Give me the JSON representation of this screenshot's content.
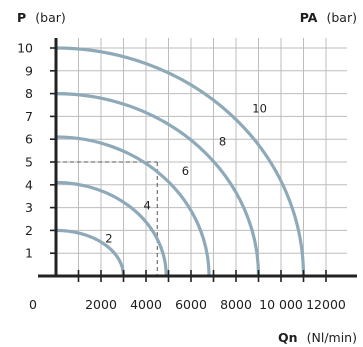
{
  "chart_data": {
    "type": "line",
    "y_axis": {
      "name": "P",
      "unit": "(bar)",
      "ticks": [
        "1",
        "2",
        "3",
        "4",
        "5",
        "6",
        "7",
        "8",
        "9",
        "10"
      ],
      "ylim": [
        0,
        10.5
      ]
    },
    "y2_axis": {
      "name": "PA",
      "unit": "(bar)"
    },
    "x_axis": {
      "name": "Qn",
      "unit": "(Nl/min)",
      "ticks": [
        "0",
        "2000",
        "4000",
        "6000",
        "8000",
        "10 000",
        "12000"
      ],
      "tick_values": [
        0,
        2000,
        4000,
        6000,
        8000,
        10000,
        12000
      ],
      "xlim": [
        0,
        13000
      ]
    },
    "grid": true,
    "series": [
      {
        "name": "2",
        "p_max": 2,
        "q_max": 3000
      },
      {
        "name": "4",
        "p_max": 4.1,
        "q_max": 4900
      },
      {
        "name": "6",
        "p_max": 6.1,
        "q_max": 6800
      },
      {
        "name": "8",
        "p_max": 8,
        "q_max": 9000
      },
      {
        "name": "10",
        "p_max": 10,
        "q_max": 11000
      }
    ],
    "reference_point": {
      "q": 4500,
      "p": 5
    }
  },
  "colors": {
    "curve": "#8eaab8",
    "grid": "#bdbdbd",
    "axis": "#222222",
    "text": "#1e1e1e"
  }
}
